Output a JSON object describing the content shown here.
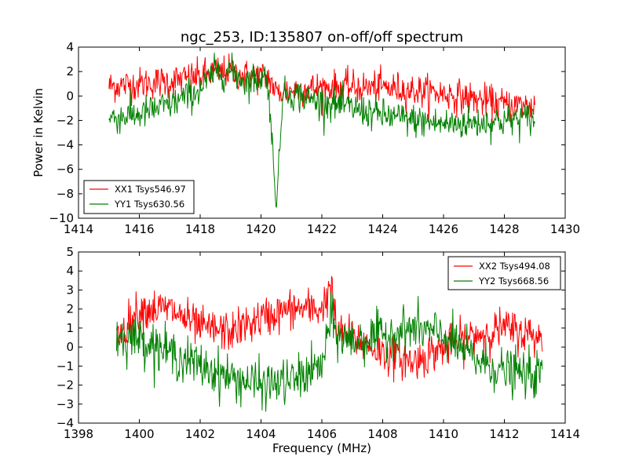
{
  "title": "ngc_253, ID:135807 on-off/off spectrum",
  "chart_data": [
    {
      "type": "line",
      "ylabel": "Power in Kelvin",
      "xlabel": "",
      "xlim": [
        1414,
        1430
      ],
      "ylim": [
        -10,
        4
      ],
      "xticks": [
        1414,
        1416,
        1418,
        1420,
        1422,
        1424,
        1426,
        1428,
        1430
      ],
      "yticks": [
        -10,
        -8,
        -6,
        -4,
        -2,
        0,
        2,
        4
      ],
      "legend_position": "lower-left",
      "grid": false,
      "series": [
        {
          "name": "XX1 Tsys546.97",
          "color": "#ff0000",
          "x_range": [
            1415,
            1429
          ],
          "trend_x": [
            1415,
            1416,
            1417,
            1418,
            1418.5,
            1419,
            1419.5,
            1420,
            1420.3,
            1420.5,
            1421,
            1422,
            1424,
            1426,
            1428,
            1429
          ],
          "trend_y": [
            0.8,
            1.0,
            1.2,
            1.6,
            2.0,
            2.0,
            1.6,
            1.6,
            1.4,
            0.2,
            0.5,
            0.7,
            0.7,
            0.2,
            -0.7,
            -0.8
          ],
          "noise": 0.9
        },
        {
          "name": "YY1 Tsys630.56",
          "color": "#008000",
          "x_range": [
            1415,
            1429
          ],
          "trend_x": [
            1415,
            1416,
            1417,
            1418,
            1418.5,
            1419,
            1419.5,
            1420,
            1420.2,
            1420.3,
            1420.5,
            1420.7,
            1421,
            1422,
            1423,
            1424,
            1425,
            1426,
            1427,
            1428,
            1429
          ],
          "trend_y": [
            -1.8,
            -1.5,
            -0.7,
            0.5,
            2.0,
            2.0,
            1.2,
            1.5,
            1.6,
            -1.0,
            -9.5,
            0.0,
            0.2,
            -0.5,
            -1.0,
            -1.6,
            -2.0,
            -2.3,
            -2.2,
            -2.0,
            -1.8
          ],
          "noise": 0.9
        }
      ]
    },
    {
      "type": "line",
      "ylabel": "",
      "xlabel": "Frequency (MHz)",
      "xlim": [
        1398,
        1414
      ],
      "ylim": [
        -4,
        5
      ],
      "xticks": [
        1398,
        1400,
        1402,
        1404,
        1406,
        1408,
        1410,
        1412,
        1414
      ],
      "yticks": [
        -4,
        -3,
        -2,
        -1,
        0,
        1,
        2,
        3,
        4,
        5
      ],
      "legend_position": "upper-right",
      "grid": false,
      "series": [
        {
          "name": "XX2 Tsys494.08",
          "color": "#ff0000",
          "x_range": [
            1399.25,
            1413.25
          ],
          "trend_x": [
            1399.25,
            1400,
            1401,
            1402,
            1403,
            1404,
            1405,
            1406,
            1406.3,
            1406.5,
            1407,
            1408,
            1409,
            1410,
            1411,
            1412,
            1413.25
          ],
          "trend_y": [
            0.5,
            2.0,
            2.0,
            1.0,
            0.8,
            1.5,
            2.0,
            2.0,
            3.2,
            0.8,
            0.5,
            -0.3,
            -0.8,
            0.0,
            0.6,
            1.0,
            0.5
          ],
          "noise": 0.7
        },
        {
          "name": "YY2 Tsys668.56",
          "color": "#008000",
          "x_range": [
            1399.25,
            1413.25
          ],
          "trend_x": [
            1399.25,
            1400,
            1401,
            1402,
            1403,
            1404,
            1405,
            1406,
            1406.3,
            1406.5,
            1407,
            1408,
            1409,
            1410,
            1411,
            1412,
            1413.25
          ],
          "trend_y": [
            0.5,
            0.5,
            -0.3,
            -1.0,
            -1.6,
            -2.0,
            -1.8,
            -1.0,
            1.5,
            0.6,
            0.3,
            0.6,
            1.0,
            0.6,
            -0.6,
            -1.3,
            -1.5
          ],
          "noise": 0.8
        }
      ]
    }
  ]
}
